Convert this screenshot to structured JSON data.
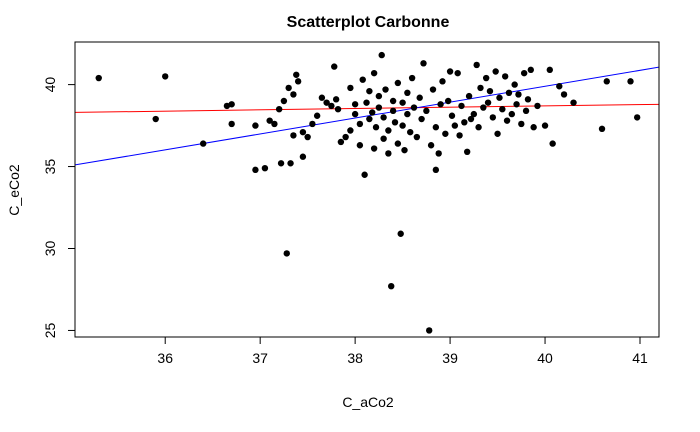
{
  "chart_data": {
    "type": "scatter",
    "title": "Scatterplot Carbonne",
    "xlabel": "C_aCo2",
    "ylabel": "C_eCo2",
    "xlim": [
      35.05,
      41.2
    ],
    "ylim": [
      24.6,
      42.6
    ],
    "xticks": [
      "36",
      "37",
      "38",
      "39",
      "40",
      "41"
    ],
    "yticks": [
      "25",
      "30",
      "35",
      "40"
    ],
    "grid": false,
    "point_color": "#000000",
    "lines": [
      {
        "color": "#ff0000",
        "intercept": 35.5,
        "slope": 0.08
      },
      {
        "color": "#0000ff",
        "intercept": 1.1,
        "slope": 0.97
      }
    ],
    "points": [
      {
        "x": 35.3,
        "y": 40.4
      },
      {
        "x": 35.9,
        "y": 37.9
      },
      {
        "x": 36.0,
        "y": 40.5
      },
      {
        "x": 36.4,
        "y": 36.4
      },
      {
        "x": 36.65,
        "y": 38.7
      },
      {
        "x": 36.7,
        "y": 38.8
      },
      {
        "x": 36.7,
        "y": 37.6
      },
      {
        "x": 36.95,
        "y": 37.5
      },
      {
        "x": 36.95,
        "y": 34.8
      },
      {
        "x": 37.05,
        "y": 34.9
      },
      {
        "x": 37.1,
        "y": 37.8
      },
      {
        "x": 37.15,
        "y": 37.6
      },
      {
        "x": 37.2,
        "y": 38.5
      },
      {
        "x": 37.22,
        "y": 35.2
      },
      {
        "x": 37.25,
        "y": 39.0
      },
      {
        "x": 37.28,
        "y": 29.7
      },
      {
        "x": 37.3,
        "y": 39.8
      },
      {
        "x": 37.32,
        "y": 35.2
      },
      {
        "x": 37.35,
        "y": 39.4
      },
      {
        "x": 37.35,
        "y": 36.9
      },
      {
        "x": 37.38,
        "y": 40.6
      },
      {
        "x": 37.4,
        "y": 40.2
      },
      {
        "x": 37.45,
        "y": 35.6
      },
      {
        "x": 37.45,
        "y": 37.1
      },
      {
        "x": 37.5,
        "y": 36.8
      },
      {
        "x": 37.55,
        "y": 37.6
      },
      {
        "x": 37.6,
        "y": 38.1
      },
      {
        "x": 37.65,
        "y": 39.2
      },
      {
        "x": 37.7,
        "y": 38.9
      },
      {
        "x": 37.75,
        "y": 38.7
      },
      {
        "x": 37.78,
        "y": 41.1
      },
      {
        "x": 37.8,
        "y": 39.1
      },
      {
        "x": 37.82,
        "y": 38.5
      },
      {
        "x": 37.85,
        "y": 36.5
      },
      {
        "x": 37.9,
        "y": 36.8
      },
      {
        "x": 37.95,
        "y": 37.2
      },
      {
        "x": 37.95,
        "y": 39.8
      },
      {
        "x": 38.0,
        "y": 38.8
      },
      {
        "x": 38.0,
        "y": 38.2
      },
      {
        "x": 38.05,
        "y": 36.3
      },
      {
        "x": 38.05,
        "y": 37.6
      },
      {
        "x": 38.08,
        "y": 40.3
      },
      {
        "x": 38.1,
        "y": 34.5
      },
      {
        "x": 38.12,
        "y": 38.9
      },
      {
        "x": 38.15,
        "y": 39.6
      },
      {
        "x": 38.15,
        "y": 37.9
      },
      {
        "x": 38.18,
        "y": 38.3
      },
      {
        "x": 38.2,
        "y": 36.1
      },
      {
        "x": 38.2,
        "y": 40.7
      },
      {
        "x": 38.22,
        "y": 37.4
      },
      {
        "x": 38.25,
        "y": 38.6
      },
      {
        "x": 38.25,
        "y": 39.3
      },
      {
        "x": 38.28,
        "y": 41.8
      },
      {
        "x": 38.3,
        "y": 36.7
      },
      {
        "x": 38.3,
        "y": 38.0
      },
      {
        "x": 38.32,
        "y": 39.7
      },
      {
        "x": 38.35,
        "y": 37.2
      },
      {
        "x": 38.35,
        "y": 35.8
      },
      {
        "x": 38.38,
        "y": 27.7
      },
      {
        "x": 38.4,
        "y": 38.4
      },
      {
        "x": 38.4,
        "y": 39.0
      },
      {
        "x": 38.42,
        "y": 37.7
      },
      {
        "x": 38.45,
        "y": 36.4
      },
      {
        "x": 38.45,
        "y": 40.1
      },
      {
        "x": 38.48,
        "y": 30.9
      },
      {
        "x": 38.5,
        "y": 38.9
      },
      {
        "x": 38.5,
        "y": 37.5
      },
      {
        "x": 38.52,
        "y": 36.0
      },
      {
        "x": 38.55,
        "y": 39.5
      },
      {
        "x": 38.55,
        "y": 38.2
      },
      {
        "x": 38.58,
        "y": 37.1
      },
      {
        "x": 38.6,
        "y": 40.4
      },
      {
        "x": 38.62,
        "y": 38.6
      },
      {
        "x": 38.65,
        "y": 36.8
      },
      {
        "x": 38.68,
        "y": 39.2
      },
      {
        "x": 38.7,
        "y": 37.9
      },
      {
        "x": 38.72,
        "y": 41.3
      },
      {
        "x": 38.75,
        "y": 38.4
      },
      {
        "x": 38.78,
        "y": 25.0
      },
      {
        "x": 38.8,
        "y": 36.3
      },
      {
        "x": 38.82,
        "y": 39.7
      },
      {
        "x": 38.85,
        "y": 34.8
      },
      {
        "x": 38.85,
        "y": 37.4
      },
      {
        "x": 38.88,
        "y": 35.8
      },
      {
        "x": 38.9,
        "y": 38.8
      },
      {
        "x": 38.92,
        "y": 40.2
      },
      {
        "x": 38.95,
        "y": 37.0
      },
      {
        "x": 38.98,
        "y": 39.0
      },
      {
        "x": 39.0,
        "y": 40.8
      },
      {
        "x": 39.02,
        "y": 38.1
      },
      {
        "x": 39.05,
        "y": 37.5
      },
      {
        "x": 39.08,
        "y": 40.7
      },
      {
        "x": 39.1,
        "y": 36.9
      },
      {
        "x": 39.12,
        "y": 38.7
      },
      {
        "x": 39.15,
        "y": 37.7
      },
      {
        "x": 39.18,
        "y": 35.9
      },
      {
        "x": 39.2,
        "y": 39.3
      },
      {
        "x": 39.22,
        "y": 37.9
      },
      {
        "x": 39.25,
        "y": 38.2
      },
      {
        "x": 39.28,
        "y": 41.2
      },
      {
        "x": 39.3,
        "y": 37.4
      },
      {
        "x": 39.32,
        "y": 39.8
      },
      {
        "x": 39.35,
        "y": 38.6
      },
      {
        "x": 39.38,
        "y": 40.4
      },
      {
        "x": 39.4,
        "y": 38.9
      },
      {
        "x": 39.42,
        "y": 39.6
      },
      {
        "x": 39.45,
        "y": 38.0
      },
      {
        "x": 39.48,
        "y": 40.8
      },
      {
        "x": 39.5,
        "y": 37.0
      },
      {
        "x": 39.52,
        "y": 39.2
      },
      {
        "x": 39.55,
        "y": 38.5
      },
      {
        "x": 39.58,
        "y": 40.5
      },
      {
        "x": 39.6,
        "y": 37.8
      },
      {
        "x": 39.62,
        "y": 39.5
      },
      {
        "x": 39.65,
        "y": 38.2
      },
      {
        "x": 39.68,
        "y": 40.0
      },
      {
        "x": 39.7,
        "y": 38.8
      },
      {
        "x": 39.72,
        "y": 39.4
      },
      {
        "x": 39.75,
        "y": 37.6
      },
      {
        "x": 39.78,
        "y": 40.7
      },
      {
        "x": 39.8,
        "y": 38.4
      },
      {
        "x": 39.82,
        "y": 39.1
      },
      {
        "x": 39.85,
        "y": 40.9
      },
      {
        "x": 39.88,
        "y": 37.4
      },
      {
        "x": 39.92,
        "y": 38.7
      },
      {
        "x": 40.0,
        "y": 37.5
      },
      {
        "x": 40.05,
        "y": 40.9
      },
      {
        "x": 40.08,
        "y": 36.4
      },
      {
        "x": 40.15,
        "y": 39.9
      },
      {
        "x": 40.2,
        "y": 39.4
      },
      {
        "x": 40.3,
        "y": 38.9
      },
      {
        "x": 40.6,
        "y": 37.3
      },
      {
        "x": 40.65,
        "y": 40.2
      },
      {
        "x": 40.9,
        "y": 40.2
      },
      {
        "x": 40.97,
        "y": 38.0
      }
    ]
  }
}
